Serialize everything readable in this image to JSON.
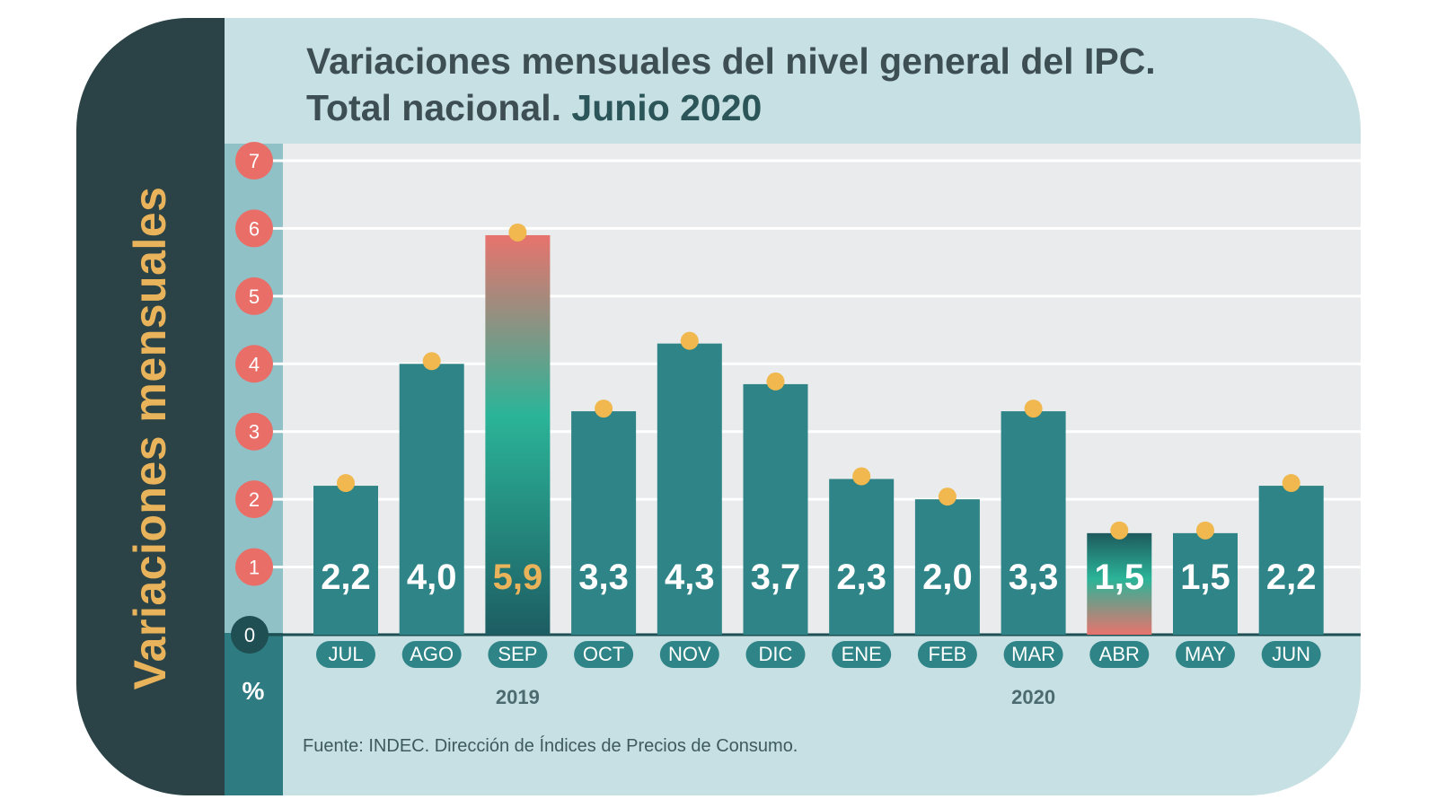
{
  "vertical_title": "Variaciones mensuales",
  "title_line1": "Variaciones mensuales del nivel general del IPC.",
  "title_line2": "Total nacional.",
  "title_line2_bold": "Junio 2020",
  "percent_symbol": "%",
  "source": "Fuente: INDEC. Dirección de Índices de Precios de Consumo.",
  "colors": {
    "bar": "#2e8487",
    "highlight_value": "#e9b35b",
    "marker": "#f0b84e",
    "tick_circle": "#ea6e68",
    "zero_circle": "#1f4f53",
    "dark_strip": "#2b4346",
    "card": "#c7e0e3"
  },
  "chart_data": {
    "type": "bar",
    "title": "Variaciones mensuales del nivel general del IPC. Total nacional. Junio 2020",
    "ylabel": "Variaciones mensuales",
    "yunit": "%",
    "ylim": [
      0,
      7
    ],
    "yticks": [
      "0",
      "1",
      "2",
      "3",
      "4",
      "5",
      "6",
      "7"
    ],
    "categories": [
      "JUL",
      "AGO",
      "SEP",
      "OCT",
      "NOV",
      "DIC",
      "ENE",
      "FEB",
      "MAR",
      "ABR",
      "MAY",
      "JUN"
    ],
    "values": [
      2.2,
      4.0,
      5.9,
      3.3,
      4.3,
      3.7,
      2.3,
      2.0,
      3.3,
      1.5,
      1.5,
      2.2
    ],
    "value_labels": [
      "2,2",
      "4,0",
      "5,9",
      "3,3",
      "4,3",
      "3,7",
      "2,3",
      "2,0",
      "3,3",
      "1,5",
      "1,5",
      "2,2"
    ],
    "highlight_max": "SEP",
    "highlight_min": "ABR",
    "year_labels": [
      {
        "text": "2019",
        "under": "SEP"
      },
      {
        "text": "2020",
        "under": "MAR"
      }
    ],
    "grid": true
  }
}
